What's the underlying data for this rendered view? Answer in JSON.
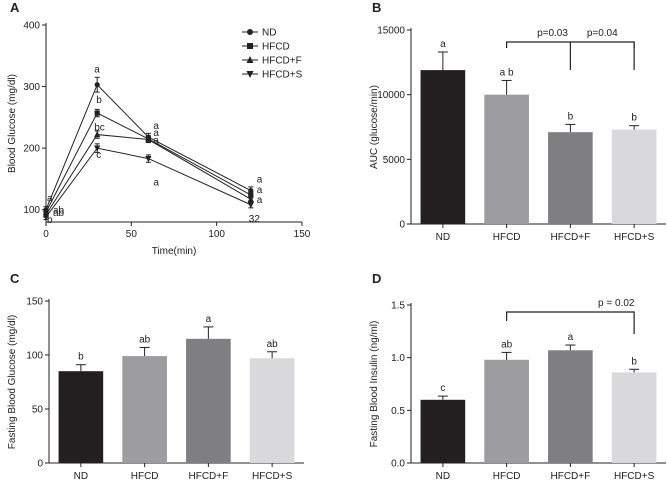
{
  "colors": {
    "axis": "#222222",
    "bar_nd": "#231f20",
    "bar_hfcd": "#9d9d9f",
    "bar_hfcdf": "#7f7f82",
    "bar_hfcds": "#d9d9db",
    "error": "#222222",
    "line": "#222222"
  },
  "chart_data": [
    {
      "panel": "A",
      "type": "line",
      "title": "",
      "xlabel": "Time(min)",
      "ylabel": "Blood Glucose (mg/dl)",
      "xlim": [
        0,
        150
      ],
      "ylim": [
        80,
        400
      ],
      "xticks": [
        "0",
        "50",
        "100",
        "150"
      ],
      "yticks": [
        "100",
        "200",
        "300",
        "400"
      ],
      "x": [
        0,
        30,
        60,
        120
      ],
      "series": [
        {
          "name": "ND",
          "marker": "circle",
          "values": [
            100,
            303,
            218,
            131
          ],
          "errors": [
            5,
            12,
            6,
            6
          ],
          "letters": [
            "a",
            "a",
            "a",
            "a"
          ]
        },
        {
          "name": "HFCD",
          "marker": "square",
          "values": [
            96,
            257,
            215,
            124
          ],
          "errors": [
            4,
            6,
            5,
            5
          ],
          "letters": [
            "ab",
            "b",
            "a",
            "a"
          ]
        },
        {
          "name": "HFCD+F",
          "marker": "triangle-up",
          "values": [
            92,
            222,
            214,
            117
          ],
          "errors": [
            4,
            6,
            5,
            5
          ],
          "letters": [
            "ab",
            "bc",
            "a",
            "a"
          ]
        },
        {
          "name": "HFCD+S",
          "marker": "triangle-down",
          "values": [
            88,
            200,
            183,
            108
          ],
          "errors": [
            4,
            7,
            6,
            5
          ],
          "letters": [
            "b",
            "c",
            "a",
            "32"
          ]
        }
      ]
    },
    {
      "panel": "B",
      "type": "bar",
      "title": "",
      "xlabel": "",
      "ylabel": "AUC (glucose/min)",
      "ylim": [
        0,
        15000
      ],
      "yticks": [
        "0",
        "5000",
        "10000",
        "15000"
      ],
      "categories": [
        "ND",
        "HFCD",
        "HFCD+F",
        "HFCD+S"
      ],
      "values": [
        11900,
        10000,
        7100,
        7300
      ],
      "errors": [
        1400,
        1100,
        600,
        300
      ],
      "letters": [
        "a",
        "a b",
        "b",
        "b"
      ],
      "comparisons": [
        {
          "from": "HFCD",
          "to": "HFCD+F",
          "label": "p=0.03"
        },
        {
          "from": "HFCD+F",
          "to": "HFCD+S",
          "label": "p=0.04"
        }
      ]
    },
    {
      "panel": "C",
      "type": "bar",
      "title": "",
      "xlabel": "",
      "ylabel": "Fasting Blood Glucose (mg/dl)",
      "ylim": [
        0,
        150
      ],
      "yticks": [
        "0",
        "50",
        "100",
        "150"
      ],
      "categories": [
        "ND",
        "HFCD",
        "HFCD+F",
        "HFCD+S"
      ],
      "values": [
        85,
        99,
        115,
        97
      ],
      "errors": [
        6,
        8,
        11,
        6
      ],
      "letters": [
        "b",
        "ab",
        "a",
        "ab"
      ],
      "comparisons": []
    },
    {
      "panel": "D",
      "type": "bar",
      "title": "",
      "xlabel": "",
      "ylabel": "Fasting Blood Insulin (ng/ml)",
      "ylim": [
        0,
        1.5
      ],
      "yticks": [
        "0.0",
        "0.5",
        "1.0",
        "1.5"
      ],
      "categories": [
        "ND",
        "HFCD",
        "HFCD+F",
        "HFCD+S"
      ],
      "values": [
        0.6,
        0.98,
        1.07,
        0.86
      ],
      "errors": [
        0.035,
        0.07,
        0.05,
        0.03
      ],
      "letters": [
        "c",
        "ab",
        "a",
        "b"
      ],
      "comparisons": [
        {
          "from": "HFCD",
          "to": "HFCD+S",
          "label": "p = 0.02"
        }
      ]
    }
  ]
}
